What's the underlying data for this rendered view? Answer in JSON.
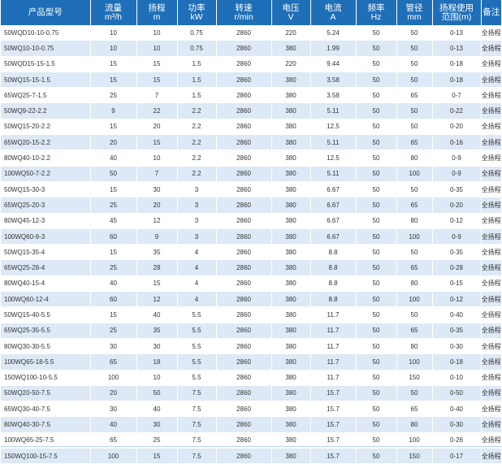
{
  "header": [
    {
      "line1": "产品型号",
      "line2": ""
    },
    {
      "line1": "流量",
      "line2": "m³/h"
    },
    {
      "line1": "扬程",
      "line2": "m"
    },
    {
      "line1": "功率",
      "line2": "kW"
    },
    {
      "line1": "转速",
      "line2": "r/min"
    },
    {
      "line1": "电压",
      "line2": "V"
    },
    {
      "line1": "电流",
      "line2": "A"
    },
    {
      "line1": "频率",
      "line2": "Hz"
    },
    {
      "line1": "管径",
      "line2": "mm"
    },
    {
      "line1": "扬程使用",
      "line2": "范围(m)"
    },
    {
      "line1": "备注",
      "line2": ""
    }
  ],
  "rows": [
    [
      "50WQD10-10-0.75",
      "10",
      "10",
      "0.75",
      "2860",
      "220",
      "5.24",
      "50",
      "50",
      "0-13",
      "全扬程"
    ],
    [
      "50WQ10-10-0.75",
      "10",
      "10",
      "0.75",
      "2860",
      "380",
      "1.99",
      "50",
      "50",
      "0-13",
      "全扬程"
    ],
    [
      "50WQD15-15-1.5",
      "15",
      "15",
      "1.5",
      "2860",
      "220",
      "9.44",
      "50",
      "50",
      "0-18",
      "全扬程"
    ],
    [
      "50WQ15-15-1.5",
      "15",
      "15",
      "1.5",
      "2860",
      "380",
      "3.58",
      "50",
      "50",
      "0-18",
      "全扬程"
    ],
    [
      "65WQ25-7-1.5",
      "25",
      "7",
      "1.5",
      "2860",
      "380",
      "3.58",
      "50",
      "65",
      "0-7",
      "全扬程"
    ],
    [
      "50WQ9-22-2.2",
      "9",
      "22",
      "2.2",
      "2860",
      "380",
      "5.11",
      "50",
      "50",
      "0-22",
      "全扬程"
    ],
    [
      "50WQ15-20-2.2",
      "15",
      "20",
      "2.2",
      "2860",
      "380",
      "12.5",
      "50",
      "50",
      "0-20",
      "全扬程"
    ],
    [
      "65WQ20-15-2.2",
      "20",
      "15",
      "2.2",
      "2860",
      "380",
      "5.11",
      "50",
      "65",
      "0-16",
      "全扬程"
    ],
    [
      "80WQ40-10-2.2",
      "40",
      "10",
      "2.2",
      "2860",
      "380",
      "12.5",
      "50",
      "80",
      "0-9",
      "全扬程"
    ],
    [
      "100WQ50-7-2.2",
      "50",
      "7",
      "2.2",
      "2860",
      "380",
      "5.11",
      "50",
      "100",
      "0-9",
      "全扬程"
    ],
    [
      "50WQ15-30-3",
      "15",
      "30",
      "3",
      "2860",
      "380",
      "6.67",
      "50",
      "50",
      "0-35",
      "全扬程"
    ],
    [
      "65WQ25-20-3",
      "25",
      "20",
      "3",
      "2860",
      "380",
      "6.67",
      "50",
      "65",
      "0-20",
      "全扬程"
    ],
    [
      "80WQ45-12-3",
      "45",
      "12",
      "3",
      "2860",
      "380",
      "6.67",
      "50",
      "80",
      "0-12",
      "全扬程"
    ],
    [
      "100WQ60-9-3",
      "60",
      "9",
      "3",
      "2860",
      "380",
      "6.67",
      "50",
      "100",
      "0-9",
      "全扬程"
    ],
    [
      "50WQ15-35-4",
      "15",
      "35",
      "4",
      "2860",
      "380",
      "8.8",
      "50",
      "50",
      "0-35",
      "全扬程"
    ],
    [
      "65WQ25-28-4",
      "25",
      "28",
      "4",
      "2860",
      "380",
      "8.8",
      "50",
      "65",
      "0-28",
      "全扬程"
    ],
    [
      "80WQ40-15-4",
      "40",
      "15",
      "4",
      "2860",
      "380",
      "8.8",
      "50",
      "80",
      "0-15",
      "全扬程"
    ],
    [
      "100WQ60-12-4",
      "60",
      "12",
      "4",
      "2860",
      "380",
      "8.8",
      "50",
      "100",
      "0-12",
      "全扬程"
    ],
    [
      "50WQ15-40-5.5",
      "15",
      "40",
      "5.5",
      "2860",
      "380",
      "11.7",
      "50",
      "50",
      "0-40",
      "全扬程"
    ],
    [
      "65WQ25-35-5.5",
      "25",
      "35",
      "5.5",
      "2860",
      "380",
      "11.7",
      "50",
      "65",
      "0-35",
      "全扬程"
    ],
    [
      "80WQ30-30-5.5",
      "30",
      "30",
      "5.5",
      "2860",
      "380",
      "11.7",
      "50",
      "80",
      "0-30",
      "全扬程"
    ],
    [
      "100WQ65-18-5.5",
      "65",
      "18",
      "5.5",
      "2860",
      "380",
      "11.7",
      "50",
      "100",
      "0-18",
      "全扬程"
    ],
    [
      "150WQ100-10-5.5",
      "100",
      "10",
      "5.5",
      "2860",
      "380",
      "11.7",
      "50",
      "150",
      "0-10",
      "全扬程"
    ],
    [
      "50WQ20-50-7.5",
      "20",
      "50",
      "7.5",
      "2860",
      "380",
      "15.7",
      "50",
      "50",
      "0-50",
      "全扬程"
    ],
    [
      "65WQ30-40-7.5",
      "30",
      "40",
      "7.5",
      "2860",
      "380",
      "15.7",
      "50",
      "65",
      "0-40",
      "全扬程"
    ],
    [
      "80WQ40-30-7.5",
      "40",
      "30",
      "7.5",
      "2860",
      "380",
      "15.7",
      "50",
      "80",
      "0-30",
      "全扬程"
    ],
    [
      "100WQ65-25-7.5",
      "65",
      "25",
      "7.5",
      "2860",
      "380",
      "15.7",
      "50",
      "100",
      "0-26",
      "全扬程"
    ],
    [
      "150WQ100-15-7.5",
      "100",
      "15",
      "7.5",
      "2860",
      "380",
      "15.7",
      "50",
      "150",
      "0-17",
      "全扬程"
    ]
  ]
}
